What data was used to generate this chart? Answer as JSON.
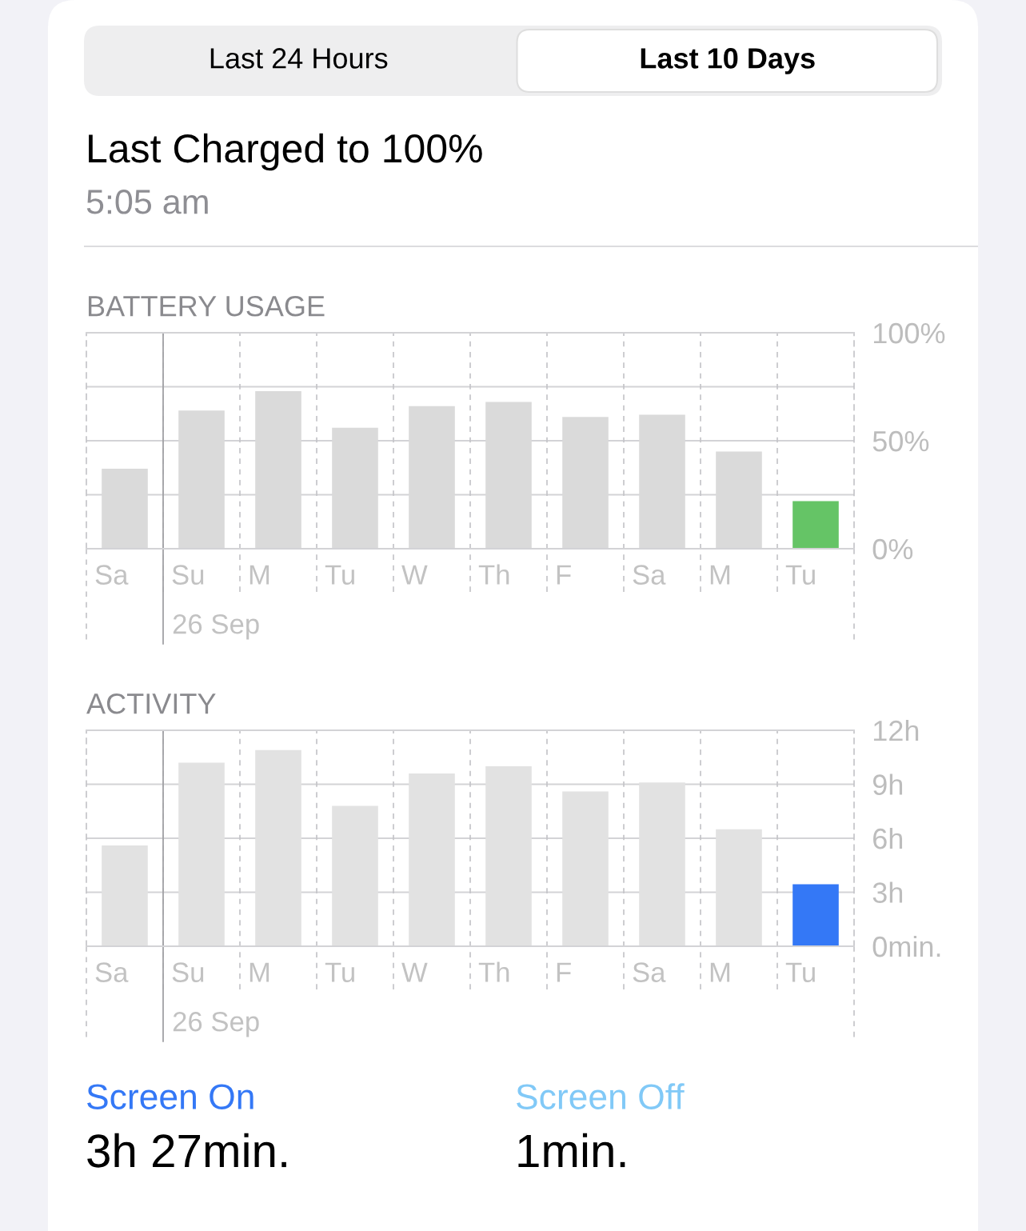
{
  "chart_data": [
    {
      "type": "other",
      "title": "Last Charged to 100%",
      "subtitle": "5:05 am",
      "annotations": [
        "Last 24 Hours",
        "Last 10 Days"
      ]
    },
    {
      "type": "bar",
      "title": "BATTERY USAGE",
      "categories": [
        "Sa",
        "Su",
        "M",
        "Tu",
        "W",
        "Th",
        "F",
        "Sa",
        "M",
        "Tu"
      ],
      "values": [
        37,
        64,
        73,
        56,
        66,
        68,
        61,
        62,
        45,
        22
      ],
      "colors": [
        "#dadada",
        "#dadada",
        "#dadada",
        "#dadada",
        "#dadada",
        "#dadada",
        "#dadada",
        "#dadada",
        "#dadada",
        "#65c466"
      ],
      "ylim": [
        0,
        100
      ],
      "yticks": [
        {
          "value": 0,
          "label": "0%"
        },
        {
          "value": 25,
          "label": null
        },
        {
          "value": 50,
          "label": "50%"
        },
        {
          "value": 75,
          "label": null
        },
        {
          "value": 100,
          "label": "100%"
        }
      ],
      "grid": true,
      "ref_lines": [
        {
          "axis": "x",
          "value": "Su",
          "label": "26 Sep",
          "color": "#a2a2a6"
        }
      ]
    },
    {
      "type": "bar",
      "title": "ACTIVITY",
      "categories": [
        "Sa",
        "Su",
        "M",
        "Tu",
        "W",
        "Th",
        "F",
        "Sa",
        "M",
        "Tu"
      ],
      "values": [
        5.6,
        10.2,
        10.9,
        7.8,
        9.6,
        10.0,
        8.6,
        9.1,
        6.5,
        3.45
      ],
      "colors": [
        "#e2e2e2",
        "#e2e2e2",
        "#e2e2e2",
        "#e2e2e2",
        "#e2e2e2",
        "#e2e2e2",
        "#e2e2e2",
        "#e2e2e2",
        "#e2e2e2",
        "#3478f6"
      ],
      "ylim": [
        0,
        12
      ],
      "yticks": [
        {
          "value": 0,
          "label": "0min."
        },
        {
          "value": 3,
          "label": "3h"
        },
        {
          "value": 6,
          "label": "6h"
        },
        {
          "value": 9,
          "label": "9h"
        },
        {
          "value": 12,
          "label": "12h"
        }
      ],
      "grid": true,
      "ref_lines": [
        {
          "axis": "x",
          "value": "Su",
          "label": "26 Sep",
          "color": "#a2a2a6"
        }
      ],
      "annotations": [
        "Screen On",
        "3h 27min.",
        "Screen Off",
        "1min."
      ]
    }
  ]
}
